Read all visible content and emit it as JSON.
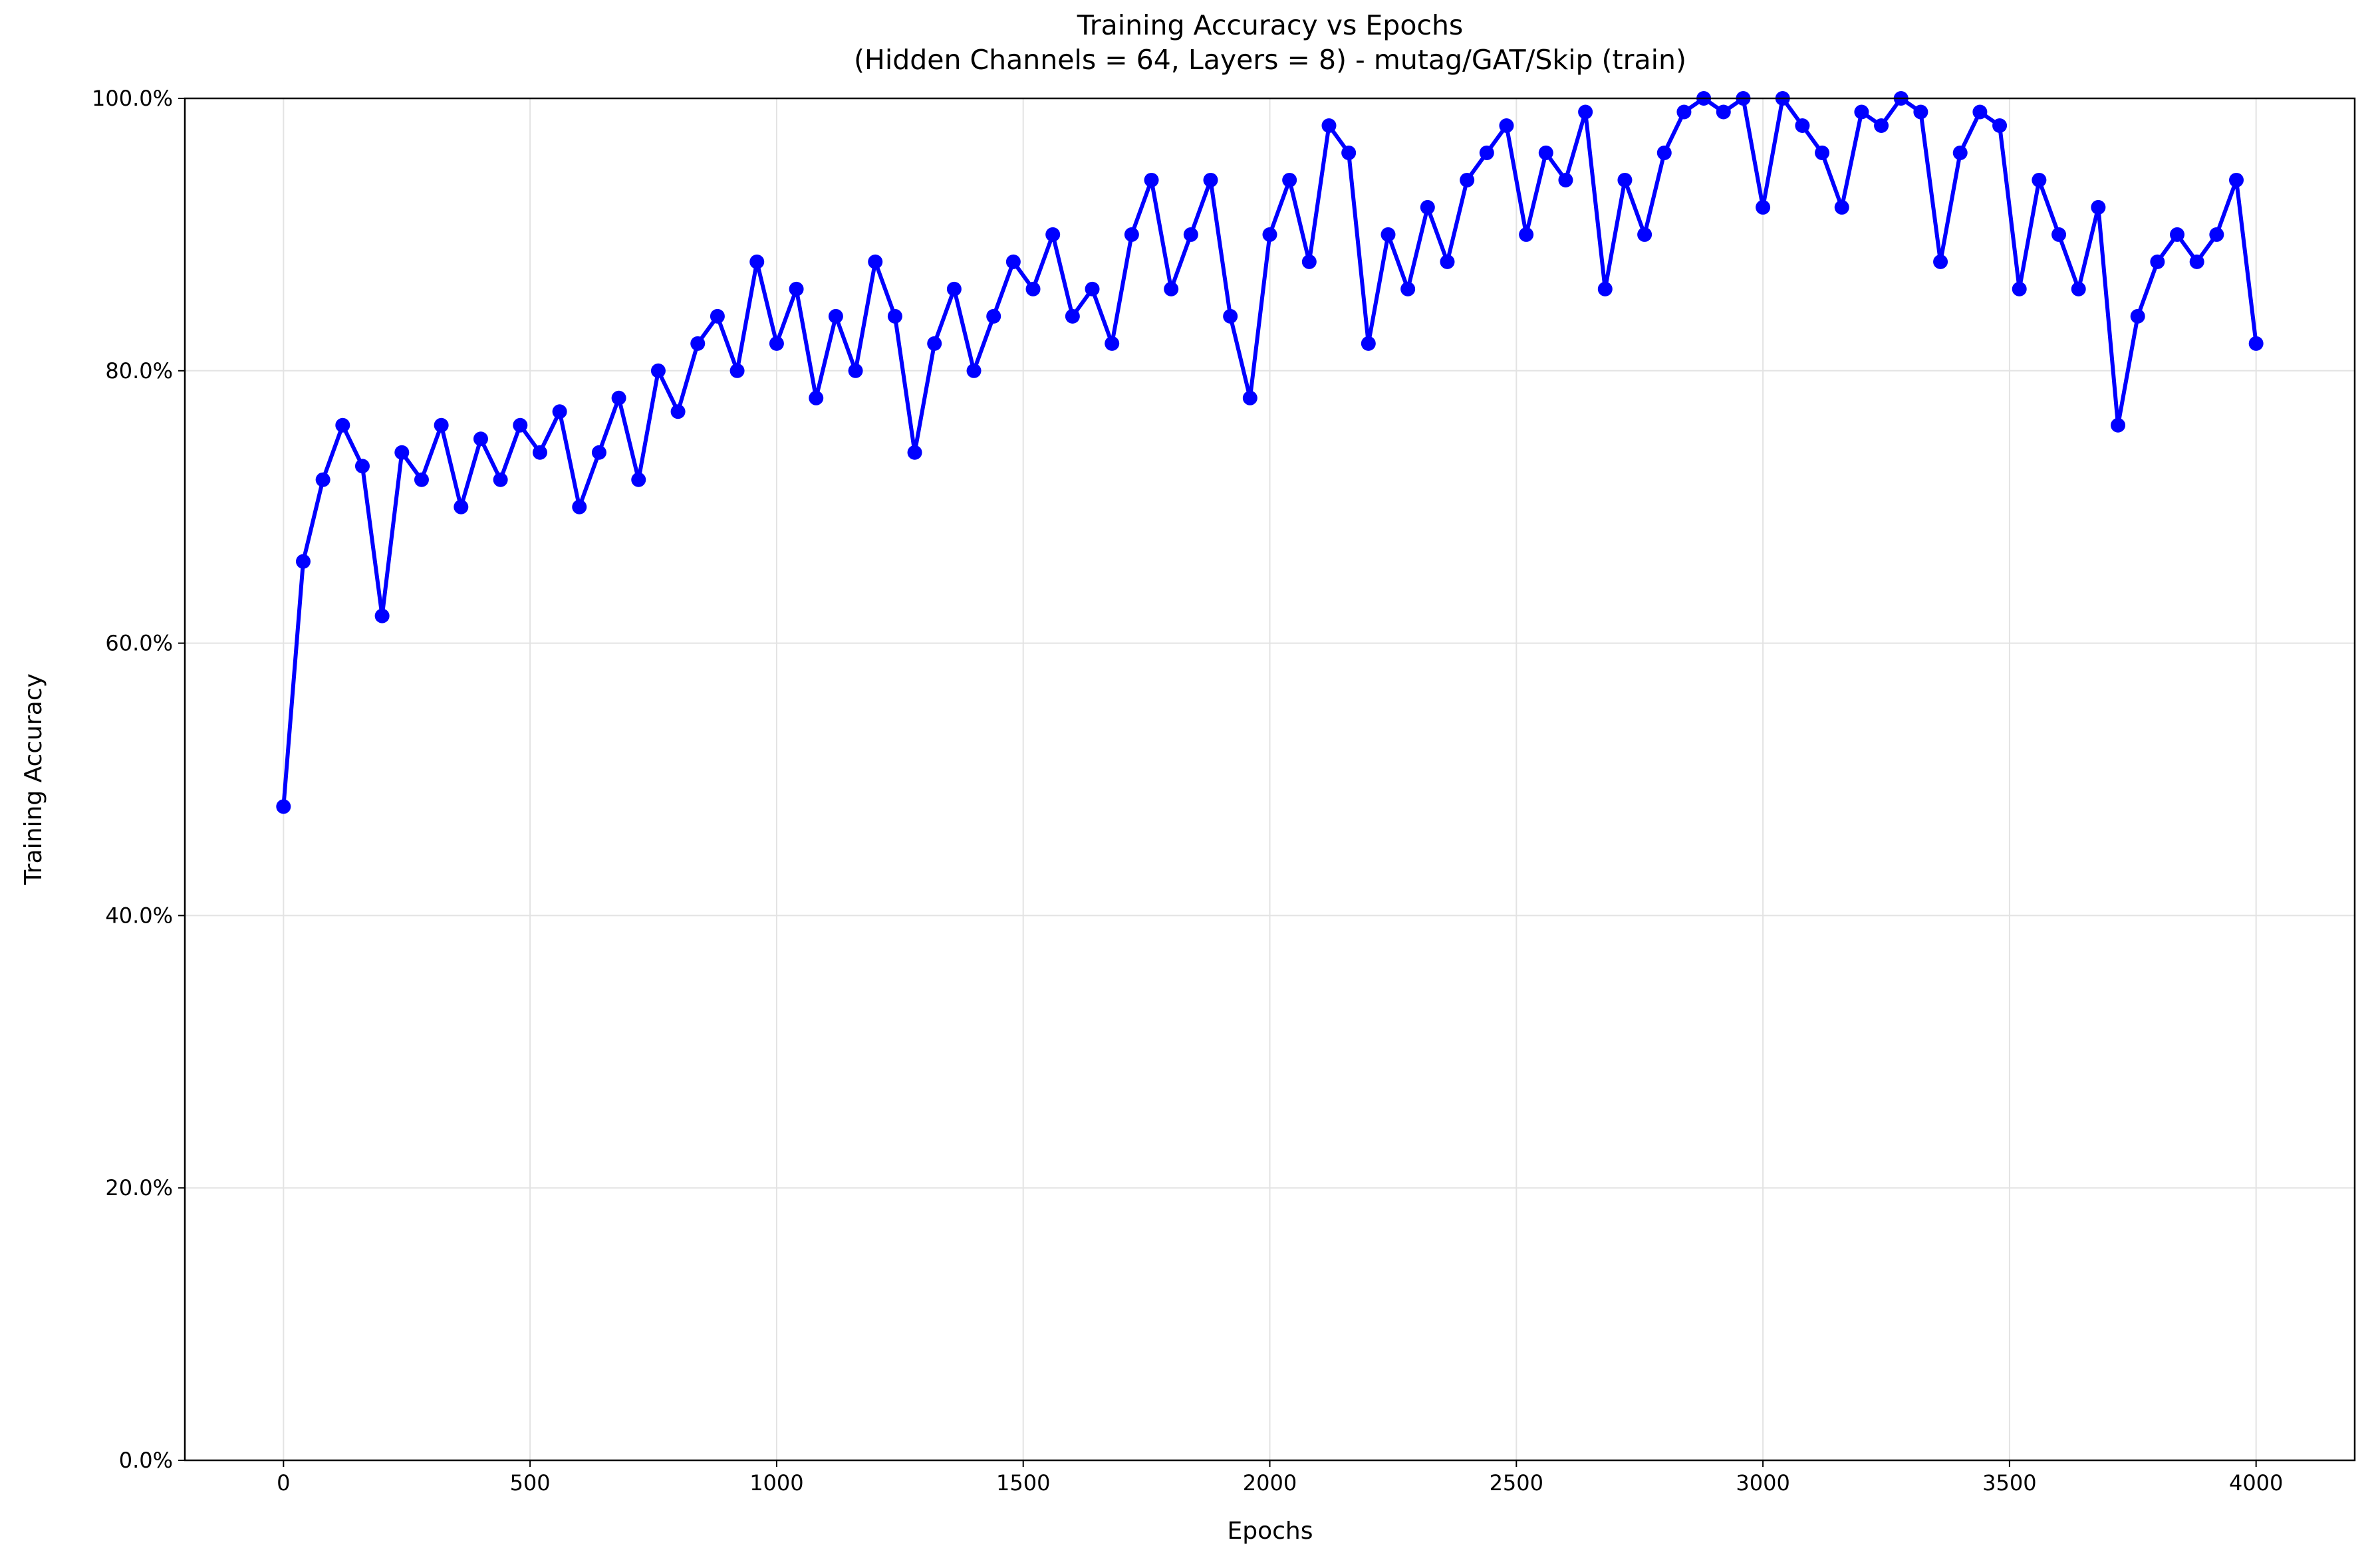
{
  "chart_data": {
    "type": "line",
    "title": "Training Accuracy vs Epochs",
    "subtitle": "(Hidden Channels = 64, Layers = 8) - mutag/GAT/Skip (train)",
    "x_label": "Epochs",
    "y_label": "Training Accuracy",
    "x": [
      0,
      40,
      80,
      120,
      160,
      200,
      240,
      280,
      320,
      360,
      400,
      440,
      480,
      520,
      560,
      600,
      640,
      680,
      720,
      760,
      800,
      840,
      880,
      920,
      960,
      1000,
      1040,
      1080,
      1120,
      1160,
      1200,
      1240,
      1280,
      1320,
      1360,
      1400,
      1440,
      1480,
      1520,
      1560,
      1600,
      1640,
      1680,
      1720,
      1760,
      1800,
      1840,
      1880,
      1920,
      1960,
      2000,
      2040,
      2080,
      2120,
      2160,
      2200,
      2240,
      2280,
      2320,
      2360,
      2400,
      2440,
      2480,
      2520,
      2560,
      2600,
      2640,
      2680,
      2720,
      2760,
      2800,
      2840,
      2880,
      2920,
      2960,
      3000,
      3040,
      3080,
      3120,
      3160,
      3200,
      3240,
      3280,
      3320,
      3360,
      3400,
      3440,
      3480,
      3520,
      3560,
      3600,
      3640,
      3680,
      3720,
      3760,
      3800,
      3840,
      3880,
      3920,
      3960,
      4000
    ],
    "series": [
      {
        "name": "Training Accuracy",
        "color": "#0000ff",
        "values": [
          48,
          66,
          72,
          76,
          73,
          62,
          74,
          72,
          76,
          70,
          75,
          72,
          76,
          74,
          77,
          70,
          74,
          78,
          72,
          80,
          77,
          82,
          84,
          80,
          88,
          82,
          86,
          78,
          84,
          80,
          88,
          84,
          74,
          82,
          86,
          80,
          84,
          88,
          86,
          90,
          84,
          86,
          82,
          90,
          94,
          86,
          90,
          94,
          84,
          78,
          90,
          94,
          88,
          98,
          96,
          82,
          90,
          86,
          92,
          88,
          94,
          96,
          98,
          90,
          96,
          94,
          99,
          86,
          94,
          90,
          96,
          99,
          100,
          99,
          100,
          92,
          100,
          98,
          96,
          92,
          99,
          98,
          100,
          99,
          88,
          96,
          99,
          98,
          86,
          94,
          90,
          86,
          92,
          76,
          84,
          88,
          90,
          88,
          90,
          94,
          82
        ]
      }
    ],
    "xlim": [
      -200,
      4200
    ],
    "ylim": [
      0,
      100
    ],
    "xticks": [
      0,
      500,
      1000,
      1500,
      2000,
      2500,
      3000,
      3500,
      4000
    ],
    "yticks": [
      {
        "value": 0,
        "label": "0.0%"
      },
      {
        "value": 20,
        "label": "20.0%"
      },
      {
        "value": 40,
        "label": "40.0%"
      },
      {
        "value": 60,
        "label": "60.0%"
      },
      {
        "value": 80,
        "label": "80.0%"
      },
      {
        "value": 100,
        "label": "100.0%"
      }
    ],
    "grid": true
  }
}
